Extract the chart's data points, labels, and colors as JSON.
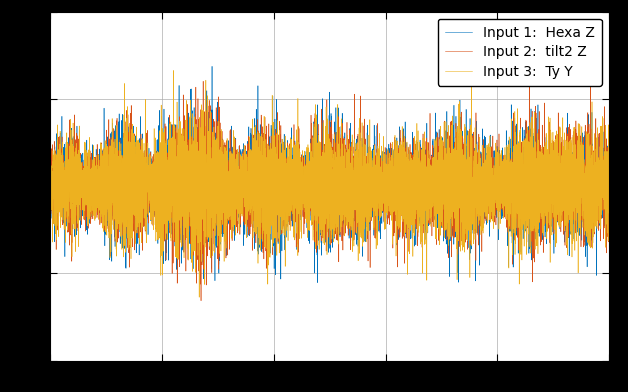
{
  "legend_entries": [
    "Input 1:  Hexa Z",
    "Input 2:  tilt2 Z",
    "Input 3:  Ty Y"
  ],
  "colors": [
    "#0072BD",
    "#D95319",
    "#EDB120"
  ],
  "n_points": 10000,
  "seed": 42,
  "linewidth": 0.4,
  "background_color": "#FFFFFF",
  "fig_facecolor": "#000000",
  "xlim": [
    0,
    10000
  ],
  "ylim": [
    -1.6,
    1.6
  ],
  "grid_color": "#AAAAAA",
  "legend_fontsize": 10,
  "figsize": [
    6.28,
    3.92
  ],
  "dpi": 100
}
